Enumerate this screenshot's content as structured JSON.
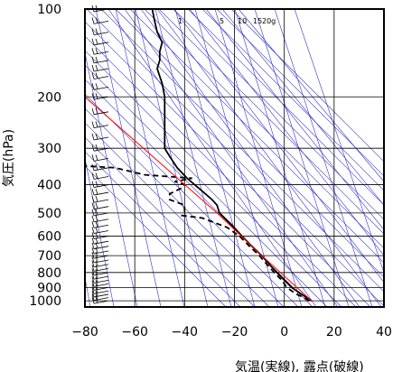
{
  "chart_data": {
    "type": "line",
    "xlabel": "気温(実線), 露点(破線)",
    "ylabel": "気圧(hPa)",
    "xlim": [
      -80,
      40
    ],
    "ylim": [
      1050,
      100
    ],
    "y_scale": "log",
    "x_ticks": [
      -80,
      -60,
      -40,
      -20,
      0,
      20,
      40
    ],
    "y_ticks": [
      100,
      200,
      300,
      400,
      500,
      600,
      700,
      800,
      900,
      1000
    ],
    "grid": true,
    "mixing_ratio_labels": [
      "1",
      "5",
      "10",
      "15",
      "20g"
    ],
    "colors": {
      "temperature": "#000000",
      "dewpoint": "#000000",
      "parcel": "#ff0000",
      "reference_lines": "#3333cc",
      "grid": "#000000"
    },
    "series": [
      {
        "name": "",
        "style": "solid",
        "points": [
          {
            "p": 1000,
            "t": 11
          },
          {
            "p": 975,
            "t": 9
          },
          {
            "p": 950,
            "t": 7
          },
          {
            "p": 925,
            "t": 5
          },
          {
            "p": 900,
            "t": 3
          },
          {
            "p": 850,
            "t": 0
          },
          {
            "p": 800,
            "t": -3
          },
          {
            "p": 750,
            "t": -6
          },
          {
            "p": 700,
            "t": -9
          },
          {
            "p": 650,
            "t": -13
          },
          {
            "p": 600,
            "t": -17
          },
          {
            "p": 550,
            "t": -21
          },
          {
            "p": 500,
            "t": -26
          },
          {
            "p": 470,
            "t": -27
          },
          {
            "p": 450,
            "t": -29
          },
          {
            "p": 420,
            "t": -33
          },
          {
            "p": 400,
            "t": -36
          },
          {
            "p": 380,
            "t": -39
          },
          {
            "p": 350,
            "t": -43
          },
          {
            "p": 320,
            "t": -46
          },
          {
            "p": 300,
            "t": -48
          },
          {
            "p": 280,
            "t": -48
          },
          {
            "p": 250,
            "t": -48
          },
          {
            "p": 230,
            "t": -48
          },
          {
            "p": 210,
            "t": -48
          },
          {
            "p": 200,
            "t": -48
          },
          {
            "p": 180,
            "t": -49
          },
          {
            "p": 170,
            "t": -50
          },
          {
            "p": 160,
            "t": -51
          },
          {
            "p": 150,
            "t": -50
          },
          {
            "p": 140,
            "t": -50
          },
          {
            "p": 130,
            "t": -49
          },
          {
            "p": 120,
            "t": -51
          },
          {
            "p": 110,
            "t": -52
          },
          {
            "p": 100,
            "t": -53
          }
        ]
      },
      {
        "name": "",
        "style": "dashed",
        "points": [
          {
            "p": 1000,
            "t": 10
          },
          {
            "p": 975,
            "t": 8
          },
          {
            "p": 950,
            "t": 5
          },
          {
            "p": 925,
            "t": 3
          },
          {
            "p": 900,
            "t": 1
          },
          {
            "p": 850,
            "t": -1
          },
          {
            "p": 800,
            "t": -4
          },
          {
            "p": 750,
            "t": -7
          },
          {
            "p": 700,
            "t": -10
          },
          {
            "p": 650,
            "t": -14
          },
          {
            "p": 600,
            "t": -18
          },
          {
            "p": 560,
            "t": -23
          },
          {
            "p": 520,
            "t": -33
          },
          {
            "p": 510,
            "t": -41
          },
          {
            "p": 500,
            "t": -40
          },
          {
            "p": 470,
            "t": -40
          },
          {
            "p": 450,
            "t": -46
          },
          {
            "p": 430,
            "t": -46
          },
          {
            "p": 410,
            "t": -41
          },
          {
            "p": 400,
            "t": -40
          },
          {
            "p": 390,
            "t": -44
          },
          {
            "p": 380,
            "t": -37
          },
          {
            "p": 370,
            "t": -56
          },
          {
            "p": 350,
            "t": -68
          },
          {
            "p": 345,
            "t": -80
          }
        ]
      },
      {
        "name": "",
        "style": "parcel",
        "points": [
          {
            "p": 1000,
            "t": 11
          },
          {
            "p": 700,
            "t": -9
          },
          {
            "p": 500,
            "t": -27
          },
          {
            "p": 200,
            "t": -80
          }
        ]
      }
    ],
    "wind_barbs_pressure": [
      1000,
      975,
      950,
      925,
      900,
      875,
      850,
      825,
      800,
      775,
      750,
      725,
      700,
      675,
      650,
      625,
      600,
      575,
      550,
      525,
      500,
      475,
      450,
      425,
      400,
      375,
      350,
      325,
      300,
      275,
      250,
      225,
      200,
      185,
      170,
      160,
      150,
      140,
      130,
      120,
      110,
      100
    ]
  }
}
